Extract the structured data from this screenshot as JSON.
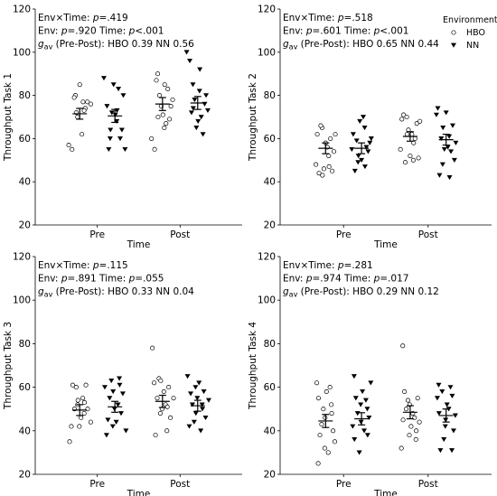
{
  "chart_data": [
    {
      "type": "scatter",
      "ylabel": "Throughput Task 1",
      "xlabel": "Time",
      "categories": [
        "Pre",
        "Post"
      ],
      "ylim": [
        20,
        120
      ],
      "yticks": [
        20,
        40,
        60,
        80,
        100,
        120
      ],
      "annotations": [
        {
          "segments": [
            {
              "t": "Env×Time: "
            },
            {
              "t": "p",
              "i": true
            },
            {
              "t": "=.419"
            }
          ]
        },
        {
          "segments": [
            {
              "t": "Env: "
            },
            {
              "t": "p",
              "i": true
            },
            {
              "t": "=.920   Time: "
            },
            {
              "t": "p",
              "i": true
            },
            {
              "t": "<.001"
            }
          ]
        },
        {
          "segments": [
            {
              "t": "g",
              "i": true
            },
            {
              "t": "av",
              "sub": true
            },
            {
              "t": " (Pre-Post): HBO 0.39   NN 0.56"
            }
          ]
        }
      ],
      "series": [
        {
          "name": "HBO",
          "marker": "circle",
          "points": [
            [
              57,
              55,
              80,
              79,
              70,
              72,
              85,
              77,
              62,
              74,
              73,
              77,
              76
            ],
            [
              60,
              55,
              90,
              87,
              80,
              70,
              75,
              65,
              71,
              67,
              85,
              83,
              75,
              69,
              78
            ]
          ],
          "mean": [
            71.5,
            76
          ],
          "error": [
            2.5,
            3
          ]
        },
        {
          "name": "NN",
          "marker": "triangle-down",
          "points": [
            [
              88,
              75,
              60,
              55,
              72,
              64,
              85,
              68,
              71,
              83,
              73,
              60,
              80,
              64,
              55
            ],
            [
              100,
              96,
              85,
              72,
              78,
              74,
              65,
              82,
              68,
              70,
              92,
              62,
              80,
              76,
              73
            ]
          ],
          "mean": [
            70.5,
            76.5
          ],
          "error": [
            3,
            3
          ]
        }
      ]
    },
    {
      "type": "scatter",
      "ylabel": "Throughput Task 2",
      "xlabel": "Time",
      "categories": [
        "Pre",
        "Post"
      ],
      "ylim": [
        20,
        120
      ],
      "yticks": [
        20,
        40,
        60,
        80,
        100,
        120
      ],
      "legend": {
        "title": "Environment",
        "position": "top-right"
      },
      "annotations": [
        {
          "segments": [
            {
              "t": "Env×Time: "
            },
            {
              "t": "p",
              "i": true
            },
            {
              "t": "=.518"
            }
          ]
        },
        {
          "segments": [
            {
              "t": "Env: "
            },
            {
              "t": "p",
              "i": true
            },
            {
              "t": "=.601   Time: "
            },
            {
              "t": "p",
              "i": true
            },
            {
              "t": "<.001"
            }
          ]
        },
        {
          "segments": [
            {
              "t": "g",
              "i": true
            },
            {
              "t": "av",
              "sub": true
            },
            {
              "t": " (Pre-Post): HBO 0.65   NN 0.44"
            }
          ]
        }
      ],
      "series": [
        {
          "name": "HBO",
          "marker": "circle",
          "points": [
            [
              62,
              48,
              44,
              65,
              66,
              46,
              43,
              58,
              52,
              56,
              60,
              47,
              45,
              62,
              54
            ],
            [
              69,
              55,
              71,
              70,
              49,
              64,
              62,
              52,
              50,
              62,
              60,
              58,
              67,
              68,
              51
            ]
          ],
          "mean": [
            55.5,
            61
          ],
          "error": [
            2.5,
            2.2
          ]
        },
        {
          "name": "NN",
          "marker": "triangle-down",
          "points": [
            [
              62,
              55,
              45,
              49,
              59,
              68,
              52,
              50,
              65,
              70,
              56,
              47,
              54,
              60,
              58
            ],
            [
              74,
              71,
              43,
              48,
              60,
              55,
              65,
              72,
              61,
              56,
              54,
              42,
              66,
              58,
              50
            ]
          ],
          "mean": [
            55.5,
            59.5
          ],
          "error": [
            2.5,
            2.5
          ]
        }
      ]
    },
    {
      "type": "scatter",
      "ylabel": "Throughput Task 3",
      "xlabel": "Time",
      "categories": [
        "Pre",
        "Post"
      ],
      "ylim": [
        20,
        120
      ],
      "yticks": [
        20,
        40,
        60,
        80,
        100,
        120
      ],
      "annotations": [
        {
          "segments": [
            {
              "t": "Env×Time: "
            },
            {
              "t": "p",
              "i": true
            },
            {
              "t": "=.115"
            }
          ]
        },
        {
          "segments": [
            {
              "t": "Env: "
            },
            {
              "t": "p",
              "i": true
            },
            {
              "t": "=.891   Time: "
            },
            {
              "t": "p",
              "i": true
            },
            {
              "t": "=.055"
            }
          ]
        },
        {
          "segments": [
            {
              "t": "g",
              "i": true
            },
            {
              "t": "av",
              "sub": true
            },
            {
              "t": " (Pre-Post): HBO 0.33   NN 0.04"
            }
          ]
        }
      ],
      "series": [
        {
          "name": "HBO",
          "marker": "circle",
          "points": [
            [
              35,
              61,
              42,
              50,
              52,
              60,
              42,
              54,
              46,
              48,
              55,
              61,
              53,
              50,
              44
            ],
            [
              78,
              38,
              62,
              55,
              48,
              64,
              50,
              63,
              58,
              40,
              52,
              60,
              51,
              46,
              55
            ]
          ],
          "mean": [
            49.5,
            53.5
          ],
          "error": [
            2.5,
            2.8
          ]
        },
        {
          "name": "NN",
          "marker": "triangle-down",
          "points": [
            [
              60,
              45,
              38,
              55,
              42,
              63,
              50,
              58,
              44,
              64,
              52,
              48,
              61,
              57,
              40
            ],
            [
              65,
              57,
              42,
              52,
              60,
              44,
              55,
              48,
              62,
              52,
              40,
              58,
              50,
              46,
              54
            ]
          ],
          "mean": [
            51,
            51.5
          ],
          "error": [
            2.5,
            2.5
          ]
        }
      ]
    },
    {
      "type": "scatter",
      "ylabel": "Throughput Task 4",
      "xlabel": "Time",
      "categories": [
        "Pre",
        "Post"
      ],
      "ylim": [
        20,
        120
      ],
      "yticks": [
        20,
        40,
        60,
        80,
        100,
        120
      ],
      "annotations": [
        {
          "segments": [
            {
              "t": "Env×Time: "
            },
            {
              "t": "p",
              "i": true
            },
            {
              "t": "=.281"
            }
          ]
        },
        {
          "segments": [
            {
              "t": "Env: "
            },
            {
              "t": "p",
              "i": true
            },
            {
              "t": "=.974   Time: "
            },
            {
              "t": "p",
              "i": true
            },
            {
              "t": "=.017"
            }
          ]
        },
        {
          "segments": [
            {
              "t": "g",
              "i": true
            },
            {
              "t": "av",
              "sub": true
            },
            {
              "t": " (Pre-Post): HBO 0.29   NN 0.12"
            }
          ]
        }
      ],
      "series": [
        {
          "name": "HBO",
          "marker": "circle",
          "points": [
            [
              25,
              62,
              38,
              55,
              43,
              32,
              50,
              58,
              46,
              30,
              52,
              60,
              40,
              48,
              35
            ],
            [
              79,
              32,
              58,
              45,
              50,
              38,
              54,
              42,
              52,
              48,
              36,
              46,
              55,
              40,
              44
            ]
          ],
          "mean": [
            44.5,
            48.5
          ],
          "error": [
            3,
            3
          ]
        },
        {
          "name": "NN",
          "marker": "triangle-down",
          "points": [
            [
              65,
              42,
              55,
              36,
              48,
              52,
              30,
              58,
              44,
              40,
              50,
              54,
              46,
              38,
              62
            ],
            [
              61,
              55,
              31,
              48,
              58,
              42,
              36,
              52,
              45,
              50,
              31,
              60,
              40,
              56,
              47
            ]
          ],
          "mean": [
            45.5,
            47
          ],
          "error": [
            2.8,
            3
          ]
        }
      ]
    }
  ]
}
